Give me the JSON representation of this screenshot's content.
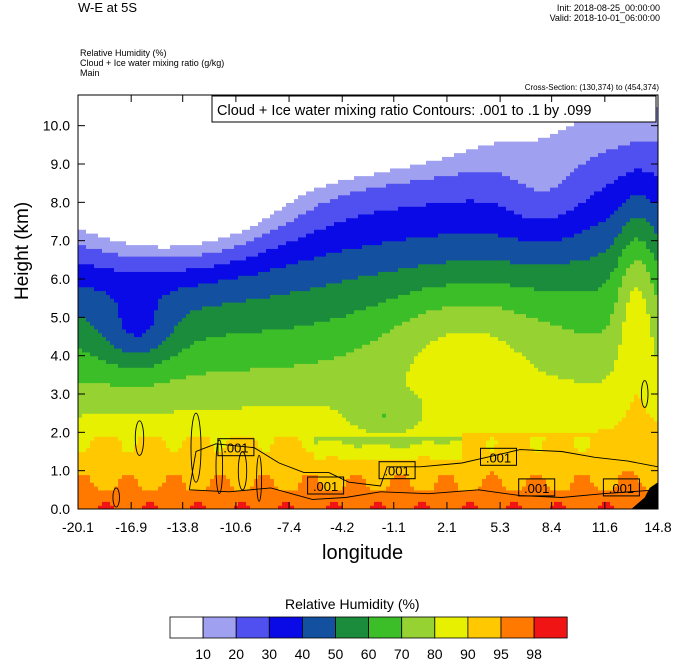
{
  "header": {
    "title": "W-E at 5S",
    "init_line": "Init: 2018-08-25_00:00:00",
    "valid_line": "Valid: 2018-10-01_06:00:00",
    "field_1": "Relative Humidity   (%)",
    "field_2": "Cloud + Ice water mixing ratio   (g/kg)",
    "field_3": "Main",
    "cross_section": "Cross-Section: (130,374) to (454,374)"
  },
  "chart_data": {
    "type": "heatmap",
    "subtitle": "Cloud + Ice water mixing ratio Contours: .001 to .1 by .099",
    "xlabel": "longitude",
    "ylabel": "Height (km)",
    "xlim": [
      -20.1,
      14.8
    ],
    "ylim": [
      0.0,
      10.8
    ],
    "x_ticks": [
      "-20.1",
      "-16.9",
      "-13.8",
      "-10.6",
      "-7.4",
      "-4.2",
      "-1.1",
      "2.1",
      "5.3",
      "8.4",
      "11.6",
      "14.8"
    ],
    "y_ticks": [
      "0.0",
      "1.0",
      "2.0",
      "3.0",
      "4.0",
      "5.0",
      "6.0",
      "7.0",
      "8.0",
      "9.0",
      "10.0"
    ],
    "contour_labels": [
      {
        "text": ".001",
        "lon": -10.6,
        "height": 1.6
      },
      {
        "text": ".001",
        "lon": -5.2,
        "height": 0.6
      },
      {
        "text": ".001",
        "lon": -0.9,
        "height": 1.0
      },
      {
        "text": ".001",
        "lon": 5.2,
        "height": 1.35
      },
      {
        "text": ".001",
        "lon": 7.5,
        "height": 0.55
      },
      {
        "text": ".001",
        "lon": 12.6,
        "height": 0.55
      }
    ],
    "colorbar": {
      "title": "Relative Humidity  (%)",
      "labels": [
        "10",
        "20",
        "30",
        "40",
        "50",
        "60",
        "70",
        "80",
        "90",
        "95",
        "98"
      ],
      "colors": [
        "#ffffff",
        "#a0a0f0",
        "#5050f0",
        "#0a0ae6",
        "#1450a0",
        "#1a8c3c",
        "#3cbe28",
        "#96d232",
        "#e6f000",
        "#ffc800",
        "#ff7800",
        "#f01414"
      ]
    }
  }
}
